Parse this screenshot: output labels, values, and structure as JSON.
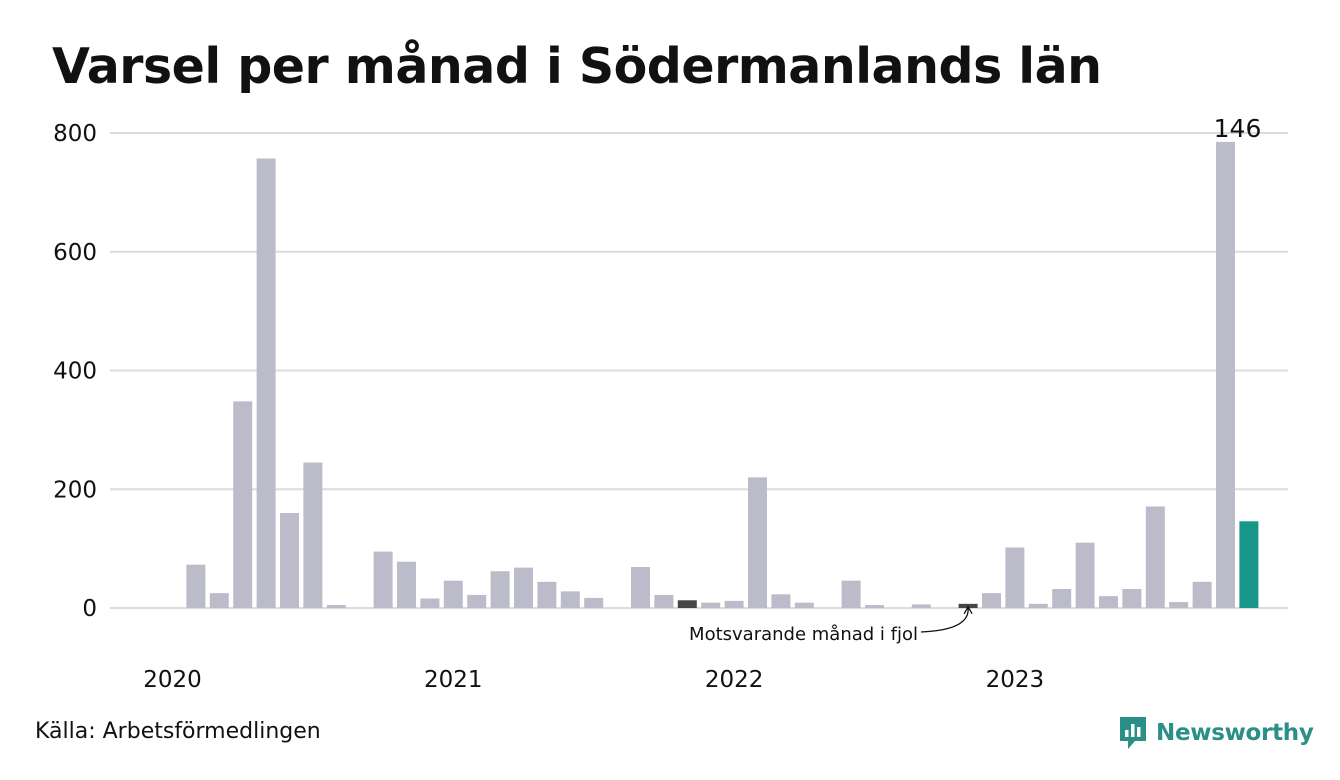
{
  "title": "Varsel per månad i Södermanlands län",
  "source": "Källa: Arbetsförmedlingen",
  "brand": {
    "name": "Newsworthy",
    "icon": "newsworthy-logo-icon",
    "color": "#2a8f86"
  },
  "colors": {
    "bar": "#bcbbc9",
    "comparison": "#454545",
    "current": "#17978a",
    "grid": "#dcdcdc"
  },
  "chart_data": {
    "type": "bar",
    "title": "Varsel per månad i Södermanlands län",
    "ylim": [
      0,
      800
    ],
    "yticks": [
      0,
      200,
      400,
      600,
      800
    ],
    "grid": true,
    "year_labels": [
      {
        "label": "2020",
        "month": "2020-01"
      },
      {
        "label": "2021",
        "month": "2021-01"
      },
      {
        "label": "2022",
        "month": "2022-01"
      },
      {
        "label": "2023",
        "month": "2023-01"
      }
    ],
    "months": [
      "2020-01",
      "2020-02",
      "2020-03",
      "2020-04",
      "2020-05",
      "2020-06",
      "2020-07",
      "2020-08",
      "2020-09",
      "2020-10",
      "2020-11",
      "2020-12",
      "2021-01",
      "2021-02",
      "2021-03",
      "2021-04",
      "2021-05",
      "2021-06",
      "2021-07",
      "2021-08",
      "2021-09",
      "2021-10",
      "2021-11",
      "2021-12",
      "2022-01",
      "2022-02",
      "2022-03",
      "2022-04",
      "2022-05",
      "2022-06",
      "2022-07",
      "2022-08",
      "2022-09",
      "2022-10",
      "2022-11",
      "2022-12",
      "2023-01",
      "2023-02",
      "2023-03",
      "2023-04",
      "2023-05",
      "2023-06",
      "2023-07",
      "2023-08",
      "2023-09",
      "2023-10",
      "2023-11",
      "2023-12"
    ],
    "values": [
      null,
      73,
      25,
      348,
      757,
      160,
      245,
      5,
      null,
      95,
      78,
      16,
      46,
      22,
      62,
      68,
      44,
      28,
      17,
      null,
      69,
      22,
      13,
      9,
      12,
      220,
      23,
      9,
      null,
      46,
      5,
      null,
      6,
      null,
      7,
      25,
      102,
      7,
      32,
      110,
      20,
      32,
      171,
      10,
      44,
      785,
      146,
      null
    ],
    "highlight_comparison": [
      "2021-11",
      "2022-11",
      "2023-11"
    ],
    "highlight_current": "2023-11",
    "value_label": "146",
    "annotation": "Motsvarande månad i fjol"
  }
}
